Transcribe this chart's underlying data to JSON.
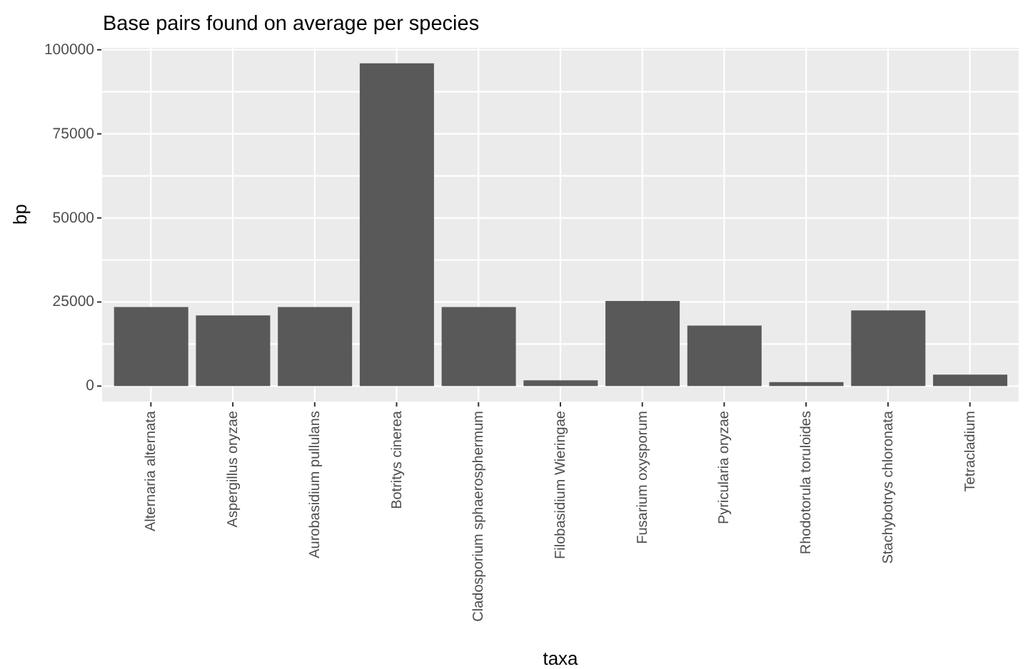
{
  "chart_data": {
    "type": "bar",
    "title": "Base pairs found on average per species",
    "xlabel": "taxa",
    "ylabel": "bp",
    "categories": [
      "Alternaria alternata",
      "Aspergillus oryzae",
      "Aurobasidium pullulans",
      "Botritys cinerea",
      "Cladosporium sphaerosphermum",
      "Filobasidium Wieringae",
      "Fusarium oxysporum",
      "Pyricularia oryzae",
      "Rhodotorula toruloides",
      "Stachybotrys chloronata",
      "Tetracladium"
    ],
    "values": [
      23500,
      21000,
      23500,
      96000,
      23500,
      1700,
      25300,
      18000,
      1200,
      22500,
      3400
    ],
    "color": "#595959",
    "ylim": [
      -4800,
      100800
    ],
    "yticks": [
      0,
      {
        "value": 12500,
        "label": null
      },
      25000,
      {
        "value": 37500,
        "label": null
      },
      50000,
      {
        "value": 62500,
        "label": null
      },
      75000,
      {
        "value": 87500,
        "label": null
      },
      100000
    ],
    "grid": true
  }
}
